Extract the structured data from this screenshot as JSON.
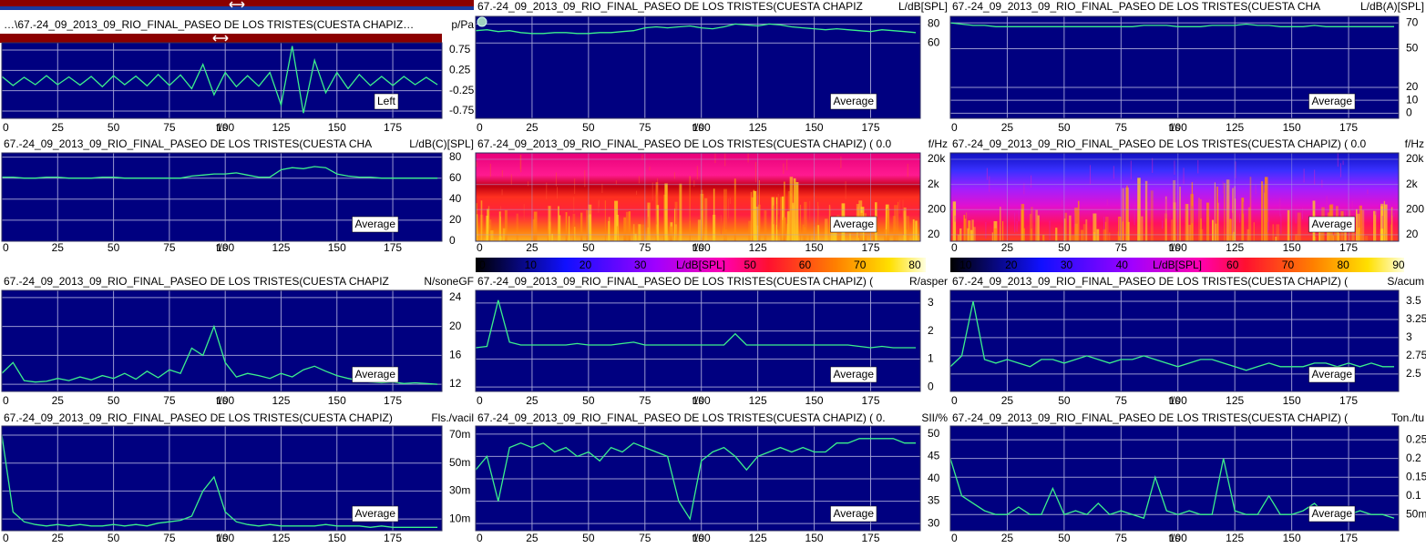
{
  "time_axis": {
    "label": "t/s",
    "xlim": [
      0,
      197
    ],
    "xticks": [
      0,
      25,
      50,
      75,
      100,
      125,
      150,
      175
    ],
    "t": [
      0,
      5,
      10,
      15,
      20,
      25,
      30,
      35,
      40,
      45,
      50,
      55,
      60,
      65,
      70,
      75,
      80,
      85,
      90,
      95,
      100,
      105,
      110,
      115,
      120,
      125,
      130,
      135,
      140,
      145,
      150,
      155,
      160,
      165,
      170,
      175,
      180,
      185,
      190,
      195
    ]
  },
  "style": {
    "line_color": "#3cf08c",
    "plot_background": "#000080",
    "grid_color": "#a8a8d8"
  },
  "panels": [
    {
      "type": "line",
      "title": "…\\67.-24_09_2013_09_RIO_FINAL_PASEO DE LOS TRISTES(CUESTA CHAPIZ…",
      "unit": "p/Pa",
      "legend": "Left",
      "ylim": [
        -0.93,
        0.93
      ],
      "yticks": [
        0.75,
        0.25,
        -0.25,
        -0.75
      ],
      "values": [
        0.1,
        -0.12,
        0.08,
        -0.1,
        0.12,
        -0.1,
        0.09,
        -0.11,
        0.1,
        -0.15,
        0.12,
        -0.1,
        0.11,
        -0.13,
        0.15,
        -0.12,
        0.14,
        -0.2,
        0.4,
        -0.35,
        0.2,
        -0.15,
        0.12,
        -0.14,
        0.2,
        -0.6,
        0.85,
        -0.8,
        0.5,
        -0.3,
        0.2,
        -0.2,
        0.15,
        -0.12,
        0.1,
        -0.12,
        0.1,
        -0.1,
        0.08,
        -0.1
      ]
    },
    {
      "type": "line",
      "title": "67.-24_09_2013_09_RIO_FINAL_PASEO DE LOS TRISTES(CUESTA CHAPIZ",
      "unit": "L/dB[SPL]",
      "legend": "Average",
      "ylim": [
        -19,
        88
      ],
      "yticks": [
        80,
        60
      ],
      "values": [
        73,
        74,
        72,
        73,
        71,
        70,
        70,
        71,
        71,
        70,
        70,
        71,
        71,
        72,
        73,
        76,
        77,
        76,
        77,
        78,
        76,
        75,
        77,
        80,
        79,
        78,
        80,
        79,
        77,
        76,
        75,
        74,
        75,
        74,
        73,
        72,
        74,
        73,
        72,
        71
      ]
    },
    {
      "type": "line",
      "title": "67.-24_09_2013_09_RIO_FINAL_PASEO DE LOS TRISTES(CUESTA CHA",
      "unit": "L/dB(A)[SPL]",
      "legend": "Average",
      "ylim": [
        -4,
        75
      ],
      "yticks": [
        70,
        50,
        20,
        10,
        0
      ],
      "values": [
        70,
        69,
        68,
        68,
        67,
        67,
        67,
        67,
        67,
        67,
        67,
        67,
        67,
        67,
        67,
        67,
        67,
        68,
        68,
        68,
        67,
        67,
        67,
        68,
        68,
        68,
        69,
        68,
        68,
        67,
        67,
        67,
        68,
        67,
        67,
        67,
        67,
        67,
        67,
        67
      ]
    },
    {
      "type": "line",
      "title": "67.-24_09_2013_09_RIO_FINAL_PASEO DE LOS TRISTES(CUESTA CHA",
      "unit": "L/dB(C)[SPL]",
      "legend": "Average",
      "ylim": [
        0,
        84
      ],
      "yticks": [
        80,
        60,
        40,
        20,
        0
      ],
      "values": [
        61,
        61,
        60,
        60,
        61,
        61,
        60,
        60,
        60,
        61,
        61,
        60,
        60,
        60,
        60,
        60,
        60,
        62,
        63,
        64,
        64,
        65,
        63,
        61,
        61,
        68,
        70,
        69,
        71,
        70,
        64,
        62,
        61,
        61,
        60,
        60,
        60,
        60,
        60,
        60
      ]
    },
    {
      "type": "spectrogram",
      "title": "67.-24_09_2013_09_RIO_FINAL_PASEO DE LOS TRISTES(CUESTA CHAPIZ) ( 0.0",
      "unit": "f/Hz",
      "legend": "Average",
      "log": true,
      "ylim": [
        11,
        36000
      ],
      "yticks": [
        {
          "value": 20000,
          "label": "20k"
        },
        {
          "value": 2000,
          "label": "2k"
        },
        200,
        20
      ],
      "colorbar": {
        "label": "L/dB[SPL]",
        "lim": [
          0,
          82
        ],
        "ticks": [
          0,
          10,
          20,
          30,
          50,
          60,
          70,
          80
        ]
      }
    },
    {
      "type": "spectrogram",
      "title": "67.-24_09_2013_09_RIO_FINAL_PASEO DE LOS TRISTES(CUESTA CHAPIZ) ( 0.0",
      "unit": "f/Hz",
      "legend": "Average",
      "log": true,
      "ylim": [
        11,
        36000
      ],
      "yticks": [
        {
          "value": 20000,
          "label": "20k"
        },
        {
          "value": 2000,
          "label": "2k"
        },
        200,
        20
      ],
      "colorbar": {
        "label": "L/dB[SPL]",
        "lim": [
          9,
          91
        ],
        "ticks": [
          10,
          20,
          30,
          40,
          60,
          70,
          80,
          90
        ]
      }
    },
    {
      "type": "line",
      "title": "67.-24_09_2013_09_RIO_FINAL_PASEO DE LOS TRISTES(CUESTA CHAPIZ",
      "unit": "N/soneGF",
      "legend": "Average",
      "ylim": [
        11,
        25
      ],
      "yticks": [
        24,
        20,
        16,
        12
      ],
      "values": [
        13.5,
        15,
        12.5,
        12.3,
        12.4,
        12.8,
        12.5,
        13,
        12.6,
        13.2,
        12.8,
        13.5,
        12.7,
        13.8,
        12.9,
        14,
        13.5,
        17,
        16,
        20,
        15,
        13,
        13.5,
        13.2,
        12.8,
        13.5,
        13,
        14,
        14.5,
        13.8,
        13.2,
        12.8,
        12.5,
        12.3,
        12.2,
        12.3,
        12.1,
        12.2,
        12.1,
        12
      ]
    },
    {
      "type": "line",
      "title": "67.-24_09_2013_09_RIO_FINAL_PASEO DE LOS TRISTES(CUESTA CHAPIZ) (",
      "unit": "R/asper",
      "legend": "Average",
      "ylim": [
        -0.16,
        3.45
      ],
      "yticks": [
        3,
        2,
        1,
        0
      ],
      "values": [
        1.4,
        1.45,
        3.1,
        1.6,
        1.5,
        1.5,
        1.5,
        1.5,
        1.5,
        1.55,
        1.5,
        1.5,
        1.5,
        1.55,
        1.6,
        1.5,
        1.5,
        1.5,
        1.5,
        1.5,
        1.5,
        1.5,
        1.5,
        1.9,
        1.5,
        1.5,
        1.5,
        1.5,
        1.5,
        1.5,
        1.5,
        1.5,
        1.5,
        1.5,
        1.45,
        1.4,
        1.45,
        1.4,
        1.4,
        1.4
      ]
    },
    {
      "type": "line",
      "title": "67.-24_09_2013_09_RIO_FINAL_PASEO DE LOS TRISTES(CUESTA CHAPIZ) (",
      "unit": "S/acum",
      "legend": "Average",
      "ylim": [
        2.26,
        3.65
      ],
      "yticks": [
        3.5,
        3.25,
        3,
        2.75,
        2.5
      ],
      "values": [
        2.6,
        2.75,
        3.5,
        2.7,
        2.65,
        2.7,
        2.65,
        2.6,
        2.7,
        2.7,
        2.65,
        2.7,
        2.75,
        2.7,
        2.65,
        2.7,
        2.7,
        2.75,
        2.7,
        2.65,
        2.6,
        2.65,
        2.7,
        2.7,
        2.65,
        2.6,
        2.55,
        2.6,
        2.65,
        2.6,
        2.6,
        2.6,
        2.65,
        2.65,
        2.6,
        2.65,
        2.6,
        2.65,
        2.6,
        2.6
      ]
    },
    {
      "type": "line",
      "title": "67.-24_09_2013_09_RIO_FINAL_PASEO DE LOS TRISTES(CUESTA CHAPIZ)",
      "unit": "Fls./vacil",
      "legend": "Average",
      "ylim": [
        0.0016,
        0.0765
      ],
      "yticks": [
        {
          "value": 0.07,
          "label": "70m"
        },
        {
          "value": 0.05,
          "label": "50m"
        },
        {
          "value": 0.03,
          "label": "30m"
        },
        {
          "value": 0.01,
          "label": "10m"
        }
      ],
      "values": [
        0.07,
        0.015,
        0.008,
        0.006,
        0.005,
        0.006,
        0.005,
        0.006,
        0.005,
        0.005,
        0.006,
        0.005,
        0.006,
        0.005,
        0.007,
        0.008,
        0.009,
        0.012,
        0.03,
        0.04,
        0.015,
        0.008,
        0.006,
        0.005,
        0.006,
        0.005,
        0.005,
        0.005,
        0.005,
        0.006,
        0.005,
        0.005,
        0.005,
        0.004,
        0.005,
        0.004,
        0.004,
        0.004,
        0.004,
        0.004
      ]
    },
    {
      "type": "line",
      "title": "67.-24_09_2013_09_RIO_FINAL_PASEO DE LOS TRISTES(CUESTA CHAPIZ) ( 0.",
      "unit": "SII/%",
      "legend": "Average",
      "ylim": [
        28.4,
        51.8
      ],
      "yticks": [
        50,
        45,
        40,
        35,
        30
      ],
      "values": [
        42,
        45,
        35,
        47,
        48,
        47,
        48,
        46,
        47,
        45,
        46,
        44,
        47,
        46,
        48,
        47,
        46,
        45,
        35,
        31,
        44,
        46,
        47,
        45,
        42,
        45,
        46,
        47,
        46,
        47,
        46,
        46,
        48,
        48,
        49,
        49,
        49,
        49,
        48,
        48
      ]
    },
    {
      "type": "line",
      "title": "67.-24_09_2013_09_RIO_FINAL_PASEO DE LOS TRISTES(CUESTA CHAPIZ) (",
      "unit": "Ton./tu",
      "legend": "Average",
      "ylim": [
        0.0066,
        0.287
      ],
      "yticks": [
        0.25,
        0.2,
        0.15,
        0.1,
        {
          "value": 0.05,
          "label": "50m"
        }
      ],
      "values": [
        0.2,
        0.1,
        0.08,
        0.06,
        0.05,
        0.05,
        0.07,
        0.05,
        0.05,
        0.12,
        0.05,
        0.06,
        0.05,
        0.08,
        0.05,
        0.06,
        0.05,
        0.04,
        0.15,
        0.06,
        0.05,
        0.06,
        0.05,
        0.05,
        0.2,
        0.06,
        0.05,
        0.05,
        0.1,
        0.05,
        0.05,
        0.06,
        0.08,
        0.05,
        0.04,
        0.05,
        0.06,
        0.05,
        0.05,
        0.04
      ]
    }
  ]
}
